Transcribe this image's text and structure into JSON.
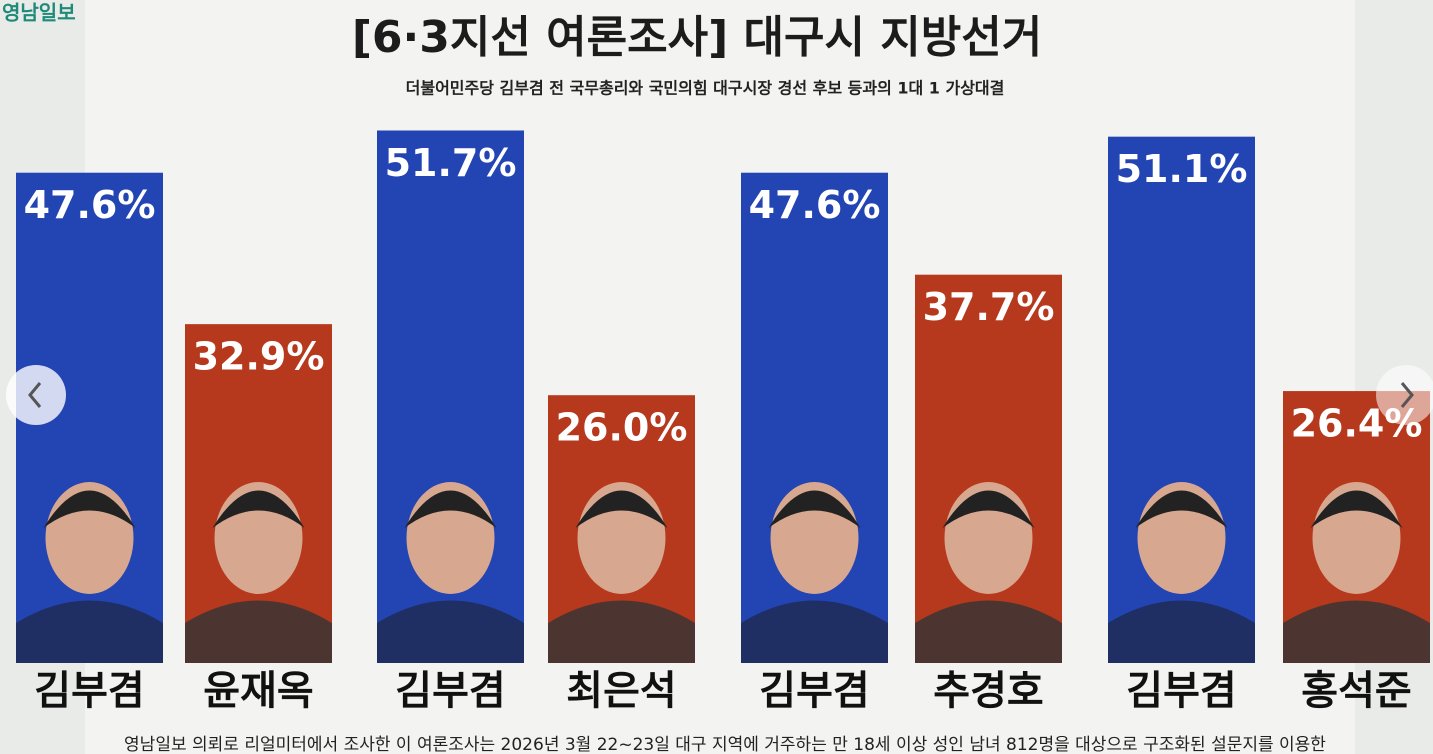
{
  "logo": "영남일보",
  "chart_data": {
    "type": "bar",
    "title": "[6·3지선 여론조사] 대구시 지방선거",
    "subtitle": "더불어민주당 김부겸 전 국무총리와 국민의힘 대구시장 경선 후보 등과의 1대 1 가상대결",
    "categories": [
      "김부겸",
      "윤재옥",
      "김부겸",
      "최은석",
      "김부겸",
      "추경호",
      "김부겸",
      "홍석준"
    ],
    "values": [
      47.6,
      32.9,
      51.7,
      26.0,
      47.6,
      37.7,
      51.1,
      26.4
    ],
    "value_labels": [
      "47.6%",
      "32.9%",
      "51.7%",
      "26.0%",
      "47.6%",
      "37.7%",
      "51.1%",
      "26.4%"
    ],
    "colors": [
      "#2344b3",
      "#b6391d",
      "#2344b3",
      "#b6391d",
      "#2344b3",
      "#b6391d",
      "#2344b3",
      "#b6391d"
    ],
    "note": "영남일보 의뢰로 리얼미터에서 조사한 이 여론조사는 2026년 3월 22~23일 대구 지역에 거주하는 만 18세 이상 성인 남녀 812명을 대상으로 구조화된 설문지를 이용한"
  }
}
